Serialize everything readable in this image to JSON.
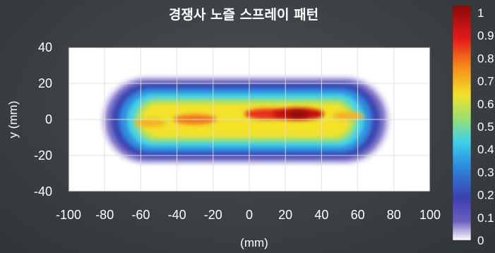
{
  "chart_data": {
    "type": "heatmap",
    "title": "경쟁사 노즐 스프레이 패턴",
    "xlabel": "(mm)",
    "ylabel": "y (mm)",
    "xlim": [
      -100,
      100
    ],
    "ylim": [
      -40,
      40
    ],
    "x_ticks": [
      "-100",
      "-80",
      "-60",
      "-40",
      "-20",
      "0",
      "20",
      "40",
      "60",
      "80",
      "100"
    ],
    "y_ticks": [
      "40",
      "20",
      "0",
      "-20",
      "-40"
    ],
    "grid": true,
    "colorbar": {
      "ticks": [
        "1",
        "0.9",
        "0.8",
        "0.7",
        "0.6",
        "0.5",
        "0.4",
        "0.3",
        "0.2",
        "0.1",
        "0"
      ],
      "range": [
        0,
        1
      ],
      "colormap": [
        "#ffffff",
        "#3b3fb0",
        "#2b8fe0",
        "#3fd0e8",
        "#f3e12b",
        "#f58a1a",
        "#e41a1a",
        "#8b0a0a"
      ]
    },
    "spray_pattern": {
      "extent_x": [
        -82,
        78
      ],
      "extent_y": [
        -25,
        24
      ],
      "hotspots": [
        {
          "x": -30,
          "y": 0,
          "value": 0.8
        },
        {
          "x": 10,
          "y": 3,
          "value": 0.85
        },
        {
          "x": 27,
          "y": 3,
          "value": 0.97
        },
        {
          "x": -55,
          "y": -2,
          "value": 0.6
        },
        {
          "x": 55,
          "y": 2,
          "value": 0.6
        }
      ]
    }
  }
}
